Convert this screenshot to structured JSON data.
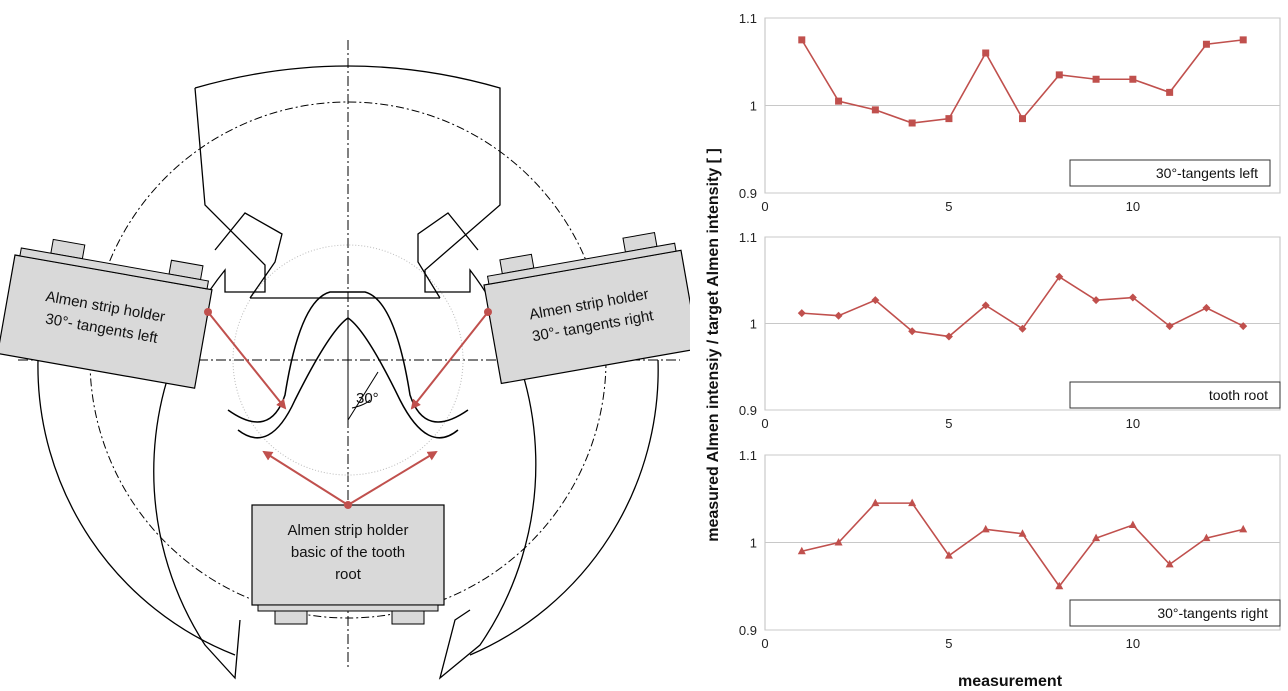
{
  "diagram": {
    "holder_left": [
      "Almen strip  holder",
      "30°- tangents left"
    ],
    "holder_right": [
      "Almen strip holder",
      "30°- tangents right"
    ],
    "holder_bottom": [
      "Almen strip holder",
      "basic of the tooth",
      "root"
    ],
    "angle_label": "30°",
    "colors": {
      "holder_fill": "#d9d9d9",
      "arrow": "#c0504d",
      "line": "#000000"
    }
  },
  "chart_data": [
    {
      "type": "line",
      "legend": "30°-tangents left",
      "marker": "square",
      "color": "#c0504d",
      "x": [
        1,
        2,
        3,
        4,
        5,
        6,
        7,
        8,
        9,
        10,
        11,
        12,
        13
      ],
      "y": [
        1.075,
        1.005,
        0.995,
        0.98,
        0.985,
        1.06,
        0.985,
        1.035,
        1.03,
        1.03,
        1.015,
        1.07,
        1.075
      ],
      "xlim": [
        0,
        14
      ],
      "ylim": [
        0.9,
        1.1
      ],
      "xticks": [
        "0",
        "5",
        "10"
      ],
      "yticks": [
        "0.9",
        "1",
        "1.1"
      ],
      "grid": true
    },
    {
      "type": "line",
      "legend": "tooth root",
      "marker": "diamond",
      "color": "#c0504d",
      "x": [
        1,
        2,
        3,
        4,
        5,
        6,
        7,
        8,
        9,
        10,
        11,
        12,
        13
      ],
      "y": [
        1.012,
        1.009,
        1.027,
        0.991,
        0.985,
        1.021,
        0.994,
        1.054,
        1.027,
        1.03,
        0.997,
        1.018,
        0.997
      ],
      "xlim": [
        0,
        14
      ],
      "ylim": [
        0.9,
        1.1
      ],
      "xticks": [
        "0",
        "5",
        "10"
      ],
      "yticks": [
        "0.9",
        "1",
        "1.1"
      ],
      "grid": true
    },
    {
      "type": "line",
      "legend": "30°-tangents right",
      "marker": "triangle",
      "color": "#c0504d",
      "x": [
        1,
        2,
        3,
        4,
        5,
        6,
        7,
        8,
        9,
        10,
        11,
        12,
        13
      ],
      "y": [
        0.99,
        1.0,
        1.045,
        1.045,
        0.985,
        1.015,
        1.01,
        0.95,
        1.005,
        1.02,
        0.975,
        1.005,
        1.015
      ],
      "xlim": [
        0,
        14
      ],
      "ylim": [
        0.9,
        1.1
      ],
      "xticks": [
        "0",
        "5",
        "10"
      ],
      "yticks": [
        "0.9",
        "1",
        "1.1"
      ],
      "grid": true
    }
  ],
  "axes": {
    "ylabel": "measured Almen intensiy / target Almen intensity [ ]",
    "xlabel": "measurement"
  }
}
